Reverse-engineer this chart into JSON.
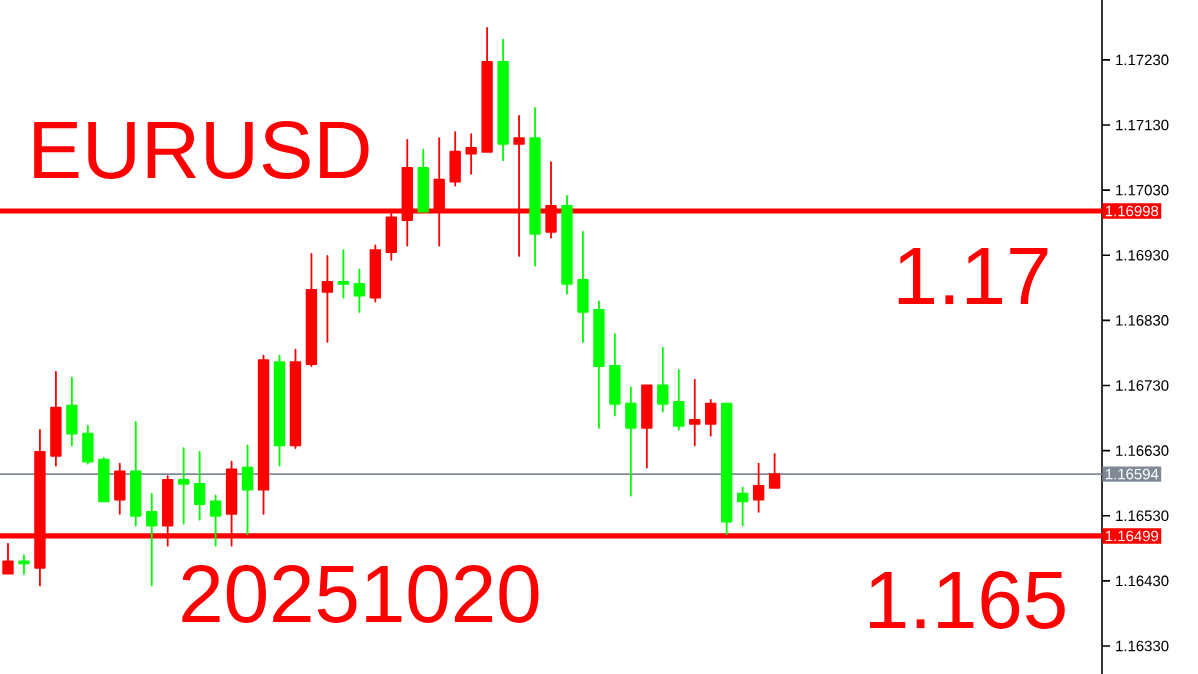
{
  "chart_data": {
    "type": "candlestick",
    "annotations": [
      "EURUSD",
      "20251020",
      "1.17",
      "1.165"
    ],
    "categories": [
      null,
      null,
      null,
      null,
      null,
      null,
      null,
      null,
      null,
      null,
      null,
      null,
      null,
      null,
      null,
      null,
      null,
      null,
      null,
      null,
      null,
      null,
      null,
      null,
      null,
      null,
      null,
      null,
      null,
      null,
      null,
      null,
      null,
      null,
      null,
      null,
      null,
      null,
      null,
      null,
      null,
      null,
      null,
      null,
      null,
      null,
      null,
      null,
      null,
      null,
      null,
      null,
      null,
      null,
      null,
      null,
      null,
      null,
      null,
      null,
      null,
      null,
      null,
      null,
      null,
      null,
      null,
      null,
      null
    ],
    "ohlc": [
      [
        1.1646,
        1.16487,
        1.16441,
        1.16441
      ],
      [
        1.16457,
        1.16469,
        1.16441,
        1.1646
      ],
      [
        1.16628,
        1.16662,
        1.16423,
        1.1645
      ],
      [
        1.16696,
        1.16751,
        1.16607,
        1.16622
      ],
      [
        1.16656,
        1.16742,
        1.16638,
        1.16699
      ],
      [
        1.16613,
        1.16668,
        1.1661,
        1.16656
      ],
      [
        1.16552,
        1.16619,
        1.16552,
        1.16616
      ],
      [
        1.16598,
        1.1661,
        1.16533,
        1.16555
      ],
      [
        1.1653,
        1.16674,
        1.16515,
        1.16598
      ],
      [
        1.16515,
        1.16564,
        1.16423,
        1.16536
      ],
      [
        1.16585,
        1.16591,
        1.16484,
        1.16515
      ],
      [
        1.16579,
        1.16634,
        1.16518,
        1.16585
      ],
      [
        1.16548,
        1.16628,
        1.16524,
        1.16579
      ],
      [
        1.1653,
        1.16561,
        1.16484,
        1.16552
      ],
      [
        1.16601,
        1.16613,
        1.16484,
        1.16533
      ],
      [
        1.1657,
        1.16638,
        1.16502,
        1.16604
      ],
      [
        1.16769,
        1.16776,
        1.16533,
        1.1657
      ],
      [
        1.16638,
        1.16776,
        1.16607,
        1.16766
      ],
      [
        1.16766,
        1.16785,
        1.16634,
        1.16638
      ],
      [
        1.16877,
        1.16932,
        1.1676,
        1.16763
      ],
      [
        1.16889,
        1.16929,
        1.16797,
        1.16874
      ],
      [
        1.16886,
        1.16938,
        1.16865,
        1.16889
      ],
      [
        1.16868,
        1.16908,
        1.16843,
        1.16886
      ],
      [
        1.16938,
        1.16945,
        1.16859,
        1.16865
      ],
      [
        1.16988,
        1.16994,
        1.16923,
        1.16935
      ],
      [
        1.17064,
        1.17107,
        1.16945,
        1.16984
      ],
      [
        1.16997,
        1.17092,
        1.16997,
        1.17064
      ],
      [
        1.17046,
        1.1711,
        1.16945,
        1.16997
      ],
      [
        1.17089,
        1.17119,
        1.17037,
        1.17043
      ],
      [
        1.17095,
        1.17116,
        1.17055,
        1.17086
      ],
      [
        1.17227,
        1.17279,
        1.17089,
        1.17089
      ],
      [
        1.17101,
        1.17261,
        1.17076,
        1.17227
      ],
      [
        1.1711,
        1.17144,
        1.16929,
        1.17101
      ],
      [
        1.16963,
        1.17156,
        1.16914,
        1.1711
      ],
      [
        1.17006,
        1.17073,
        1.16957,
        1.16966
      ],
      [
        1.16886,
        1.17021,
        1.16871,
        1.17006
      ],
      [
        1.16843,
        1.16966,
        1.16797,
        1.16892
      ],
      [
        1.1676,
        1.16859,
        1.16665,
        1.16846
      ],
      [
        1.16702,
        1.16809,
        1.16684,
        1.1676
      ],
      [
        1.16665,
        1.16727,
        1.16561,
        1.16702
      ],
      [
        1.1673,
        1.1673,
        1.16604,
        1.16665
      ],
      [
        1.16702,
        1.16788,
        1.1669,
        1.1673
      ],
      [
        1.16668,
        1.16754,
        1.16662,
        1.16705
      ],
      [
        1.16677,
        1.16739,
        1.16638,
        1.16671
      ],
      [
        1.16702,
        1.16708,
        1.16653,
        1.16671
      ],
      [
        1.16521,
        1.16702,
        1.16502,
        1.16702
      ],
      [
        1.16552,
        1.16573,
        1.16515,
        1.16564
      ],
      [
        1.16576,
        1.1661,
        1.16536,
        1.16555
      ],
      [
        1.16594,
        1.16625,
        1.16573,
        1.16573
      ],
      null,
      null,
      null,
      null,
      null,
      null,
      null,
      null,
      null,
      null,
      null,
      null,
      null,
      null,
      null,
      null,
      null,
      null,
      null,
      null
    ],
    "colors": [
      "#ff0000",
      "#00ff00",
      "#ff0000",
      "#ff0000",
      "#00ff00",
      "#00ff00",
      "#00ff00",
      "#ff0000",
      "#00ff00",
      "#00ff00",
      "#ff0000",
      "#00ff00",
      "#00ff00",
      "#00ff00",
      "#ff0000",
      "#00ff00",
      "#ff0000",
      "#00ff00",
      "#ff0000",
      "#ff0000",
      "#ff0000",
      "#00ff00",
      "#00ff00",
      "#ff0000",
      "#ff0000",
      "#ff0000",
      "#00ff00",
      "#ff0000",
      "#ff0000",
      "#ff0000",
      "#ff0000",
      "#00ff00",
      "#ff0000",
      "#00ff00",
      "#ff0000",
      "#00ff00",
      "#00ff00",
      "#00ff00",
      "#00ff00",
      "#00ff00",
      "#ff0000",
      "#00ff00",
      "#00ff00",
      "#ff0000",
      "#ff0000",
      "#00ff00",
      "#00ff00",
      "#ff0000",
      "#ff0000",
      null,
      null,
      null,
      null,
      null,
      null,
      null,
      null,
      null,
      null,
      null,
      null,
      null,
      null,
      null,
      null,
      null,
      null,
      null,
      null
    ],
    "ylim": [
      1.16287,
      1.17322
    ],
    "yticks": [
      {
        "value": 1.1633,
        "label": "1.16330"
      },
      {
        "value": 1.1643,
        "label": "1.16430"
      },
      {
        "value": 1.1653,
        "label": "1.16530"
      },
      {
        "value": 1.1663,
        "label": "1.16630"
      },
      {
        "value": 1.1673,
        "label": "1.16730"
      },
      {
        "value": 1.1683,
        "label": "1.16830"
      },
      {
        "value": 1.1693,
        "label": "1.16930"
      },
      {
        "value": 1.1703,
        "label": "1.17030"
      },
      {
        "value": 1.1713,
        "label": "1.17130"
      },
      {
        "value": 1.1723,
        "label": "1.17230"
      }
    ],
    "ref_lines": [
      {
        "axis": "y",
        "value": 1.16998,
        "label": "1.16998",
        "color": "#ff0000"
      },
      {
        "axis": "y",
        "value": 1.16594,
        "label": "1.16594",
        "color": "#808a96"
      },
      {
        "axis": "y",
        "value": 1.16499,
        "label": "1.16499",
        "color": "#ff0000"
      }
    ]
  }
}
